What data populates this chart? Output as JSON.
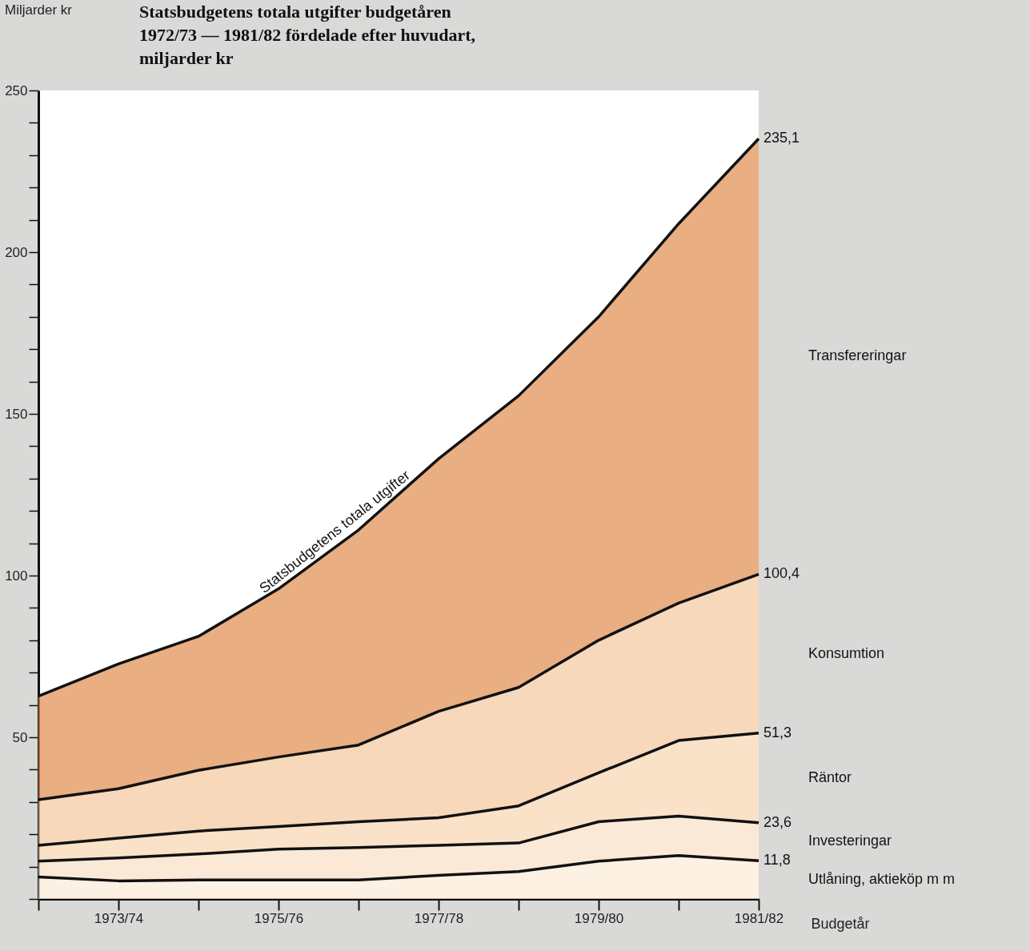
{
  "chart_data": {
    "type": "area",
    "stacked": true,
    "title": "Statsbudgetens totala utgifter budgetåren 1972/73 — 1981/82 fördelade efter huvudart, miljarder kr",
    "ylabel": "Miljarder kr",
    "xlabel": "Budgetår",
    "categories": [
      null,
      "1973/74",
      null,
      "1975/76",
      null,
      "1977/78",
      null,
      "1979/80",
      null,
      "1981/82"
    ],
    "series": [
      {
        "name": "Utlåning, aktieköp m m",
        "color": "#fcebd9",
        "values": [
          6.8,
          5.6,
          5.9,
          5.9,
          5.9,
          7.3,
          8.5,
          11.7,
          13.4,
          11.8
        ]
      },
      {
        "name": "Investeringar",
        "color": "#fae0c6",
        "values": [
          4.9,
          7.1,
          8.0,
          9.5,
          10.0,
          9.3,
          8.8,
          12.2,
          12.2,
          11.8
        ]
      },
      {
        "name": "Räntor",
        "color": "#f8d5b2",
        "values": [
          4.9,
          6.1,
          7.1,
          7.0,
          8.0,
          8.5,
          11.5,
          15.1,
          23.4,
          27.7
        ]
      },
      {
        "name": "Konsumtion",
        "color": "#f4c79c",
        "values": [
          14.1,
          15.3,
          18.8,
          21.5,
          23.7,
          32.9,
          36.6,
          41.0,
          42.5,
          49.1
        ]
      },
      {
        "name": "Transfereringar",
        "color": "#e08b4d",
        "values": [
          32.0,
          38.6,
          41.4,
          52.0,
          66.5,
          78.1,
          90.2,
          100.0,
          117.3,
          134.7
        ]
      }
    ],
    "annotations": [
      "Statsbudgetens totala utgifter",
      {
        "text": "235,1",
        "x": "1981/82",
        "y": 235.1
      },
      {
        "text": "100,4",
        "x": "1981/82",
        "y": 100.4
      },
      {
        "text": "51,3",
        "x": "1981/82",
        "y": 51.3
      },
      {
        "text": "23,6",
        "x": "1981/82",
        "y": 23.6
      },
      {
        "text": "11,8",
        "x": "1981/82",
        "y": 11.8
      }
    ],
    "ylim": [
      0,
      250
    ],
    "yticks": [
      {
        "value": 0,
        "label": null
      },
      {
        "value": 10,
        "label": null
      },
      {
        "value": 20,
        "label": null
      },
      {
        "value": 30,
        "label": null
      },
      {
        "value": 40,
        "label": null
      },
      50,
      {
        "value": 60,
        "label": null
      },
      {
        "value": 70,
        "label": null
      },
      {
        "value": 80,
        "label": null
      },
      {
        "value": 90,
        "label": null
      },
      100,
      {
        "value": 110,
        "label": null
      },
      {
        "value": 120,
        "label": null
      },
      {
        "value": 130,
        "label": null
      },
      {
        "value": 140,
        "label": null
      },
      150,
      {
        "value": 160,
        "label": null
      },
      {
        "value": 170,
        "label": null
      },
      {
        "value": 180,
        "label": null
      },
      {
        "value": 190,
        "label": null
      },
      200,
      {
        "value": 210,
        "label": null
      },
      {
        "value": 220,
        "label": null
      },
      {
        "value": 230,
        "label": null
      },
      {
        "value": 240,
        "label": null
      },
      250
    ],
    "grid": false,
    "legend": false
  }
}
